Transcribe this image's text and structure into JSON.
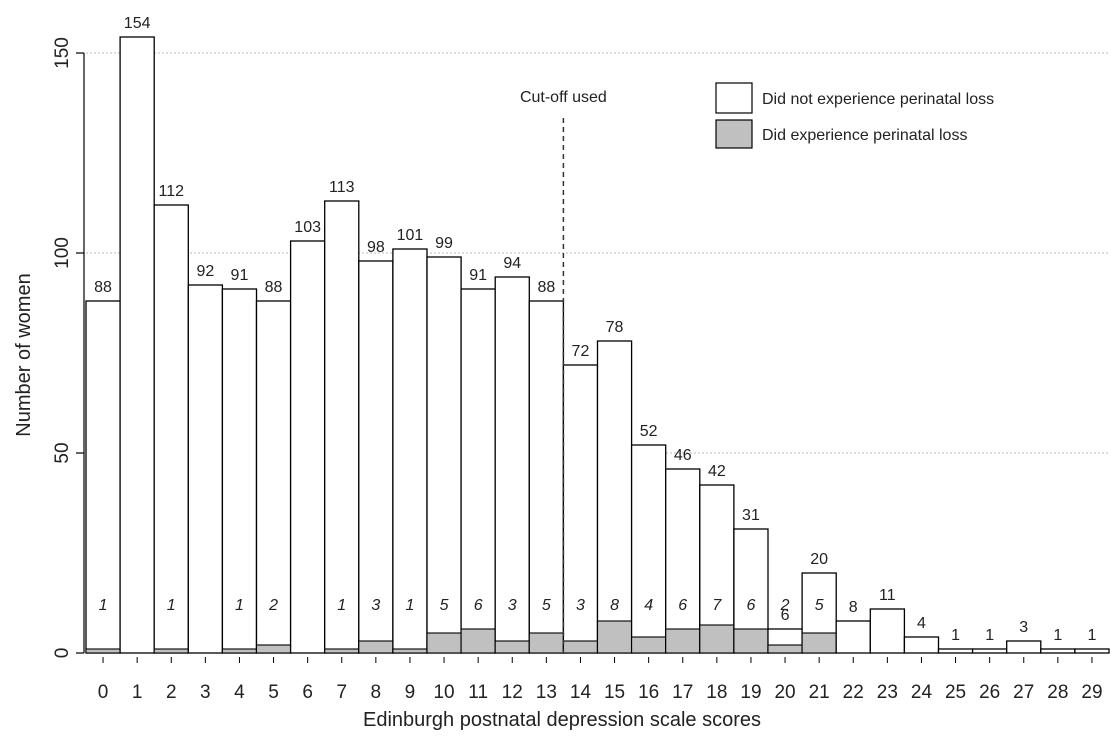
{
  "chart_data": {
    "type": "bar",
    "ylabel": "Number of women",
    "xlabel": "Edinburgh postnatal depression scale scores",
    "categories": [
      "0",
      "1",
      "2",
      "3",
      "4",
      "5",
      "6",
      "7",
      "8",
      "9",
      "10",
      "11",
      "12",
      "13",
      "14",
      "15",
      "16",
      "17",
      "18",
      "19",
      "20",
      "21",
      "22",
      "23",
      "24",
      "25",
      "26",
      "27",
      "28",
      "29"
    ],
    "series": [
      {
        "name": "Did not experience perinatal loss",
        "color": "#ffffff",
        "values": [
          88,
          154,
          112,
          92,
          91,
          88,
          103,
          113,
          98,
          101,
          99,
          91,
          94,
          88,
          72,
          78,
          52,
          46,
          42,
          31,
          6,
          20,
          8,
          11,
          4,
          1,
          1,
          3,
          1,
          1
        ]
      },
      {
        "name": "Did experience perinatal loss",
        "color": "#c0c0c0",
        "values": [
          1,
          0,
          1,
          0,
          1,
          2,
          0,
          1,
          3,
          1,
          5,
          6,
          3,
          5,
          3,
          8,
          4,
          6,
          7,
          6,
          2,
          5,
          null,
          null,
          null,
          null,
          null,
          null,
          null,
          null
        ],
        "labels": [
          "1",
          "",
          "1",
          "",
          "1",
          "2",
          "",
          "1",
          "3",
          "1",
          "5",
          "6",
          "3",
          "5",
          "3",
          "8",
          "4",
          "6",
          "7",
          "6",
          "2",
          "5",
          "",
          "",
          "",
          "",
          "",
          "",
          "",
          ""
        ]
      }
    ],
    "yticks": [
      0,
      50,
      100,
      150
    ],
    "ylim": [
      0,
      160
    ],
    "grid": true,
    "legend_position": "top-right",
    "annotation": {
      "label": "Cut-off used",
      "x_between": [
        13,
        14
      ]
    }
  }
}
